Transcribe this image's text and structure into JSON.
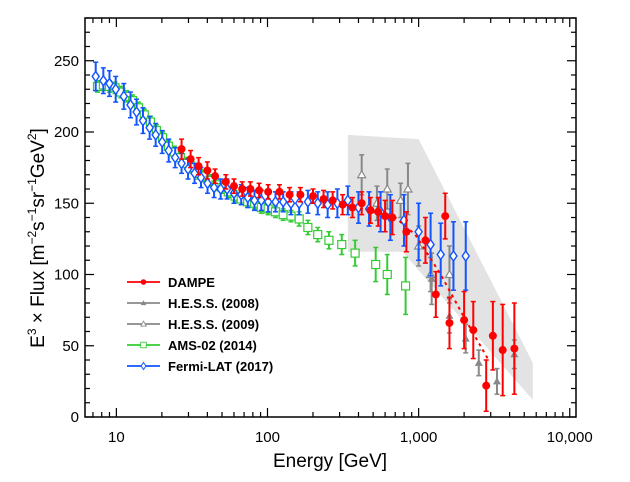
{
  "chart_data": {
    "type": "scatter",
    "title": "",
    "xlabel": "Energy [GeV]",
    "ylabel_parts": {
      "prefix": "E",
      "prefix_sup": "3",
      "times": " × Flux [m",
      "m_sup": "−2",
      "s": "s",
      "s_sup": "−1",
      "sr": "sr",
      "sr_sup": "−1",
      "gev": "GeV",
      "gev_sup": "2",
      "close": "]"
    },
    "x_scale": "log",
    "xlim": [
      6.2,
      11000
    ],
    "ylim": [
      0,
      280
    ],
    "x_ticks": [
      10,
      100,
      1000,
      10000
    ],
    "x_tick_labels": [
      "10",
      "100",
      "1,000",
      "10,000"
    ],
    "y_ticks": [
      0,
      50,
      100,
      150,
      200,
      250
    ],
    "y_tick_labels": [
      "0",
      "50",
      "100",
      "150",
      "200",
      "250"
    ],
    "legend_position": "bottom-left",
    "grid": false,
    "band": {
      "name": "H.E.S.S. systematic band",
      "color": "#e3e3e3",
      "upper": [
        [
          340,
          198
        ],
        [
          1000,
          195
        ],
        [
          5700,
          38
        ]
      ],
      "lower": [
        [
          340,
          116
        ],
        [
          780,
          116
        ],
        [
          5700,
          12
        ]
      ]
    },
    "series": [
      {
        "name": "DAMPE",
        "color": "#ff0000",
        "marker": "filled-circle",
        "dashed_fit": true,
        "points": [
          [
            27,
            188,
            7
          ],
          [
            31,
            181,
            6
          ],
          [
            35,
            176,
            6
          ],
          [
            40,
            173,
            6
          ],
          [
            45,
            169,
            5
          ],
          [
            53,
            165,
            5
          ],
          [
            60,
            162,
            5
          ],
          [
            68,
            160,
            5
          ],
          [
            77,
            160,
            5
          ],
          [
            88,
            159,
            5
          ],
          [
            101,
            158,
            5
          ],
          [
            120,
            158,
            5
          ],
          [
            140,
            156,
            5
          ],
          [
            165,
            156,
            5
          ],
          [
            200,
            155,
            5
          ],
          [
            235,
            153,
            6
          ],
          [
            270,
            152,
            6
          ],
          [
            314,
            149,
            7
          ],
          [
            365,
            147,
            7
          ],
          [
            420,
            150,
            8
          ],
          [
            480,
            145,
            9
          ],
          [
            540,
            144,
            10
          ],
          [
            600,
            141,
            11
          ],
          [
            670,
            140,
            12
          ],
          [
            830,
            130,
            14
          ],
          [
            1110,
            124,
            16
          ],
          [
            1300,
            86,
            16
          ],
          [
            1500,
            141,
            16
          ],
          [
            1600,
            66,
            18
          ],
          [
            2000,
            68,
            20
          ],
          [
            2300,
            61,
            20
          ],
          [
            2800,
            22,
            18
          ],
          [
            3100,
            57,
            24
          ],
          [
            3600,
            47,
            32
          ],
          [
            4300,
            48,
            32
          ]
        ]
      },
      {
        "name": "H.E.S.S. (2008)",
        "color": "#888888",
        "marker": "filled-triangle",
        "points": [
          [
            1220,
            97,
            18
          ],
          [
            1600,
            71,
            12
          ],
          [
            2050,
            55,
            10
          ],
          [
            2500,
            38,
            9
          ],
          [
            3300,
            25,
            9
          ],
          [
            4300,
            44,
            10
          ]
        ]
      },
      {
        "name": "H.E.S.S. (2009)",
        "color": "#888888",
        "marker": "open-triangle",
        "points": [
          [
            420,
            170,
            14
          ],
          [
            530,
            150,
            12
          ],
          [
            620,
            160,
            14
          ],
          [
            760,
            152,
            12
          ],
          [
            850,
            160,
            18
          ],
          [
            1000,
            120,
            14
          ],
          [
            1200,
            100,
            12
          ],
          [
            1600,
            100,
            20
          ]
        ]
      },
      {
        "name": "AMS-02 (2014)",
        "color": "#33cc33",
        "marker": "open-square",
        "points": [
          [
            7.5,
            232,
            4
          ],
          [
            8.2,
            233,
            4
          ],
          [
            9.0,
            232,
            4
          ],
          [
            9.8,
            231,
            4
          ],
          [
            10.7,
            228,
            4
          ],
          [
            11.7,
            225,
            4
          ],
          [
            12.8,
            222,
            4
          ],
          [
            14.0,
            217,
            4
          ],
          [
            15.3,
            212,
            4
          ],
          [
            16.8,
            207,
            4
          ],
          [
            18.4,
            201,
            4
          ],
          [
            20.2,
            196,
            4
          ],
          [
            22.1,
            190,
            4
          ],
          [
            24.2,
            186,
            4
          ],
          [
            26.5,
            182,
            4
          ],
          [
            29.0,
            178,
            4
          ],
          [
            31.8,
            175,
            4
          ],
          [
            34.8,
            171,
            4
          ],
          [
            38.1,
            169,
            4
          ],
          [
            41.7,
            166,
            4
          ],
          [
            45.7,
            163,
            4
          ],
          [
            50.0,
            161,
            4
          ],
          [
            55,
            158,
            4
          ],
          [
            61,
            155,
            4
          ],
          [
            67,
            153,
            4
          ],
          [
            74,
            151,
            4
          ],
          [
            82,
            150,
            4
          ],
          [
            91,
            147,
            4
          ],
          [
            101,
            146,
            4
          ],
          [
            113,
            144,
            4
          ],
          [
            127,
            142,
            4
          ],
          [
            143,
            141,
            4
          ],
          [
            162,
            139,
            5
          ],
          [
            185,
            133,
            5
          ],
          [
            215,
            128,
            5
          ],
          [
            255,
            124,
            6
          ],
          [
            310,
            121,
            7
          ],
          [
            380,
            115,
            9
          ],
          [
            520,
            107,
            12
          ],
          [
            620,
            100,
            14
          ],
          [
            820,
            92,
            20
          ]
        ]
      },
      {
        "name": "Fermi-LAT (2017)",
        "color": "#1155ff",
        "marker": "open-diamond",
        "points": [
          [
            7.3,
            239,
            10
          ],
          [
            8.2,
            236,
            9
          ],
          [
            9.0,
            234,
            9
          ],
          [
            9.9,
            230,
            9
          ],
          [
            11.2,
            225,
            9
          ],
          [
            12.4,
            219,
            9
          ],
          [
            13.6,
            214,
            9
          ],
          [
            15.0,
            208,
            9
          ],
          [
            16.6,
            203,
            8
          ],
          [
            18.2,
            198,
            8
          ],
          [
            20.1,
            193,
            8
          ],
          [
            22.2,
            187,
            8
          ],
          [
            24.5,
            182,
            7
          ],
          [
            27.0,
            178,
            7
          ],
          [
            29.8,
            174,
            7
          ],
          [
            32.9,
            171,
            7
          ],
          [
            36.3,
            168,
            7
          ],
          [
            40.1,
            164,
            7
          ],
          [
            44.3,
            161,
            7
          ],
          [
            49.0,
            160,
            7
          ],
          [
            54.0,
            160,
            7
          ],
          [
            60,
            157,
            7
          ],
          [
            67,
            156,
            7
          ],
          [
            74,
            154,
            7
          ],
          [
            82,
            152,
            7
          ],
          [
            91,
            152,
            7
          ],
          [
            101,
            151,
            7
          ],
          [
            113,
            151,
            7
          ],
          [
            127,
            151,
            7
          ],
          [
            143,
            150,
            8
          ],
          [
            162,
            150,
            8
          ],
          [
            185,
            151,
            8
          ],
          [
            215,
            150,
            8
          ],
          [
            250,
            149,
            9
          ],
          [
            290,
            150,
            10
          ],
          [
            340,
            152,
            10
          ],
          [
            400,
            147,
            11
          ],
          [
            470,
            146,
            12
          ],
          [
            560,
            144,
            14
          ],
          [
            650,
            140,
            16
          ],
          [
            800,
            138,
            18
          ],
          [
            1000,
            130,
            20
          ],
          [
            1200,
            121,
            22
          ],
          [
            1400,
            114,
            22
          ],
          [
            1700,
            113,
            24
          ],
          [
            2050,
            113,
            24
          ]
        ]
      }
    ],
    "legend": [
      {
        "label": "DAMPE"
      },
      {
        "label": "H.E.S.S. (2008)"
      },
      {
        "label": "H.E.S.S. (2009)"
      },
      {
        "label": "AMS-02 (2014)"
      },
      {
        "label": "Fermi-LAT (2017)"
      }
    ]
  }
}
